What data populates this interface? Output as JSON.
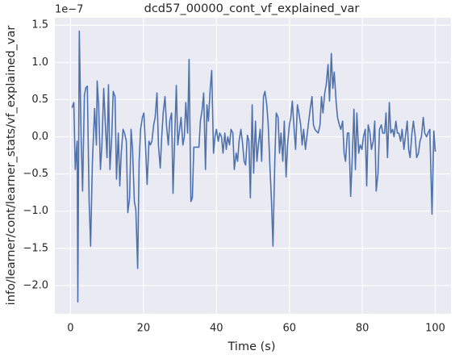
{
  "chart_data": {
    "type": "line",
    "title": "dcd57_00000_cont_vf_explained_var",
    "x_label": "Time (s)",
    "y_label": "info/learner/cont/learner_stats/vf_explained_var",
    "y_offset_text": "1e−7",
    "grid": true,
    "xlim": [
      -4.3,
      104.3
    ],
    "ylim": [
      -2.38,
      1.6
    ],
    "xticks": [
      0,
      20,
      40,
      60,
      80,
      100
    ],
    "yticks": [
      {
        "value": 1.5,
        "label": "1.5"
      },
      {
        "value": 1,
        "label": "1.0"
      },
      {
        "value": 0.5,
        "label": "0.5"
      },
      {
        "value": 0,
        "label": "0.0"
      },
      {
        "value": -0.5,
        "label": "−0.5"
      },
      {
        "value": -1,
        "label": "−1.0"
      },
      {
        "value": -1.5,
        "label": "−1.5"
      },
      {
        "value": -2,
        "label": "−2.0"
      }
    ],
    "x": [
      0.4,
      0.9,
      1.3,
      1.8,
      2.0,
      2.4,
      2.9,
      3.3,
      3.8,
      4.2,
      4.6,
      5.1,
      5.5,
      6.0,
      6.6,
      7.1,
      7.3,
      7.7,
      8.2,
      8.6,
      9.1,
      9.5,
      10.0,
      10.4,
      10.8,
      11.3,
      11.7,
      12.2,
      12.6,
      13.1,
      13.5,
      13.9,
      14.4,
      14.8,
      15.3,
      15.7,
      16.2,
      16.6,
      17.0,
      17.5,
      17.9,
      18.4,
      18.8,
      19.2,
      19.7,
      20.1,
      20.6,
      21.0,
      21.5,
      21.9,
      22.3,
      22.8,
      23.2,
      23.7,
      24.1,
      24.6,
      25.0,
      25.4,
      25.9,
      26.3,
      26.8,
      27.2,
      27.7,
      28.1,
      28.5,
      29.0,
      29.4,
      29.9,
      30.3,
      30.8,
      31.2,
      31.6,
      32.1,
      32.5,
      33.0,
      33.4,
      33.8,
      34.3,
      34.7,
      35.2,
      35.6,
      36.1,
      36.5,
      37.0,
      37.4,
      37.8,
      38.3,
      38.7,
      39.2,
      39.6,
      40.0,
      40.5,
      40.9,
      41.4,
      41.8,
      42.3,
      42.7,
      43.1,
      43.6,
      44.0,
      44.5,
      44.9,
      45.4,
      45.8,
      46.2,
      46.7,
      47.1,
      47.6,
      48.0,
      48.5,
      48.9,
      49.3,
      49.8,
      50.2,
      50.7,
      51.1,
      51.5,
      52.0,
      52.4,
      52.9,
      53.3,
      53.8,
      54.2,
      54.6,
      55.1,
      55.5,
      56.0,
      56.4,
      56.9,
      57.3,
      57.7,
      58.2,
      58.6,
      59.1,
      59.5,
      60.0,
      60.4,
      60.8,
      61.3,
      61.7,
      62.2,
      62.6,
      63.1,
      63.5,
      63.9,
      64.4,
      64.8,
      65.3,
      65.7,
      66.2,
      66.6,
      67.0,
      67.5,
      67.9,
      68.4,
      68.8,
      69.2,
      69.7,
      70.1,
      70.6,
      71.0,
      71.5,
      71.9,
      72.3,
      72.8,
      73.2,
      73.7,
      74.1,
      74.6,
      75.0,
      75.4,
      75.9,
      76.3,
      76.8,
      77.2,
      77.7,
      78.1,
      78.5,
      79.0,
      79.4,
      79.9,
      80.3,
      80.8,
      81.2,
      81.6,
      82.1,
      82.5,
      83.0,
      83.4,
      83.8,
      84.3,
      84.7,
      85.2,
      85.6,
      86.1,
      86.5,
      86.9,
      87.4,
      87.8,
      88.3,
      88.7,
      89.2,
      89.6,
      90.0,
      90.5,
      90.9,
      91.4,
      91.8,
      92.3,
      92.7,
      93.1,
      93.6,
      94.0,
      94.5,
      94.9,
      95.4,
      95.8,
      96.2,
      96.7,
      97.1,
      97.6,
      98.0,
      98.5,
      99.1,
      99.6,
      100.0
    ],
    "series": [
      {
        "name": "vf_explained_var",
        "color": "#4c72b0",
        "values": [
          0.39,
          0.46,
          -0.44,
          -0.06,
          -2.22,
          1.42,
          0,
          -0.73,
          0.56,
          0.66,
          0.68,
          -0.87,
          -1.47,
          -0.33,
          0.38,
          -0.11,
          0.75,
          0.43,
          -0.44,
          -0.11,
          0.65,
          0.21,
          -0.28,
          0.7,
          -0.44,
          0,
          0.61,
          0.54,
          -0.57,
          0.05,
          -0.66,
          -0.22,
          0.1,
          0.05,
          -0.06,
          -1.02,
          -0.82,
          0.1,
          -0.17,
          -0.87,
          -0.98,
          -1.77,
          -0.34,
          0.1,
          0.26,
          0.32,
          -0.17,
          -0.64,
          -0.06,
          -0.11,
          -0.06,
          0.16,
          0.26,
          0.59,
          -0.11,
          -0.42,
          0,
          0.32,
          0.54,
          0.16,
          -0.11,
          0.21,
          0.32,
          -0.76,
          -0.11,
          0.69,
          -0.11,
          0.1,
          0.26,
          -0.11,
          0,
          0.46,
          0.05,
          1.04,
          -0.87,
          -0.82,
          -0.14,
          -0.14,
          -0.14,
          -0.14,
          0.21,
          0.37,
          0.59,
          -0.44,
          0.43,
          0.21,
          0.65,
          0.89,
          -0.22,
          0,
          0.1,
          -0.06,
          0.05,
          0,
          -0.22,
          0.05,
          -0.17,
          0,
          -0.11,
          0.1,
          0.05,
          -0.44,
          -0.22,
          -0.33,
          -0.06,
          0.1,
          -0.06,
          -0.33,
          -0.38,
          0.02,
          -0.06,
          -0.82,
          0.43,
          -0.49,
          0.21,
          -0.33,
          -0.11,
          0.1,
          -0.33,
          0.54,
          0.61,
          0.43,
          0.16,
          -0.33,
          -0.87,
          -1.47,
          -0.33,
          0.32,
          0.26,
          -0.22,
          0.05,
          -0.33,
          0.21,
          -0.54,
          -0.11,
          0.16,
          0.26,
          0.48,
          0.1,
          -0.17,
          0.43,
          0.32,
          0.16,
          -0.11,
          0.1,
          -0.17,
          0,
          0.21,
          0.37,
          0.54,
          0.16,
          0.1,
          0.07,
          0.05,
          0.16,
          0.54,
          0.32,
          0.59,
          0.7,
          0.97,
          0.48,
          1.12,
          0.65,
          0.87,
          0.48,
          0.26,
          0.16,
          0.1,
          0.21,
          -0.22,
          -0.33,
          0.05,
          0.05,
          -0.8,
          -0.33,
          0.37,
          -0.44,
          0.32,
          -0.22,
          -0.11,
          -0.17,
          0,
          0.1,
          -0.66,
          0.16,
          0.05,
          -0.17,
          -0.06,
          0.21,
          -0.73,
          -0.49,
          0.1,
          0.16,
          0.05,
          0.05,
          0.32,
          -0.28,
          0.46,
          0.05,
          0.1,
          0,
          0.21,
          0.05,
          0.05,
          -0.06,
          0.1,
          -0.17,
          0,
          0.21,
          -0.17,
          -0.28,
          0.05,
          0.21,
          0,
          -0.28,
          -0.22,
          -0.06,
          0,
          0.26,
          0.05,
          0,
          0.05,
          0.1,
          -1.04,
          0.08,
          -0.2
        ]
      }
    ]
  }
}
